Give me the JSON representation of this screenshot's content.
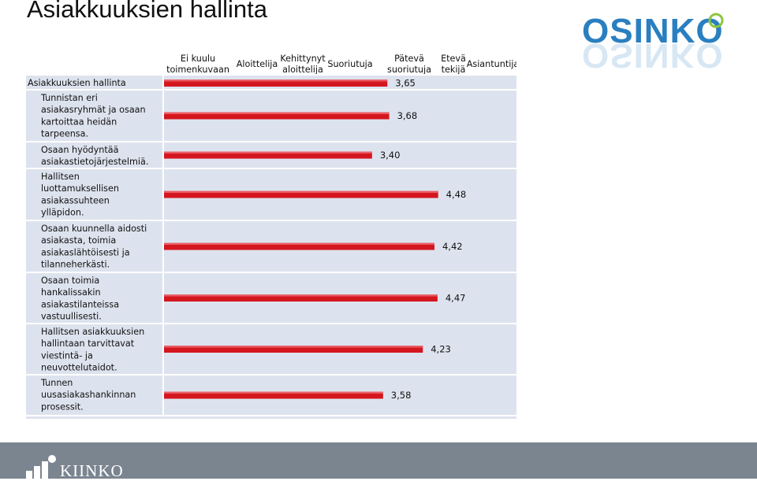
{
  "slide": {
    "title": "Asiakkuuksien hallinta"
  },
  "logo": {
    "text": "OSINKO",
    "color": "#2a7fc0",
    "accent": "#8dc63f"
  },
  "footer": {
    "brand": "KIINKO",
    "background": "#7b8590"
  },
  "chart_data": {
    "type": "bar",
    "orientation": "horizontal",
    "scale_labels": [
      [
        "Ei kuulu",
        "toimenkuvaan"
      ],
      [
        "Aloittelija"
      ],
      [
        "Kehittynyt",
        "aloittelija"
      ],
      [
        "Suoriutuja"
      ],
      [
        "Pätevä",
        "suoriutuja"
      ],
      [
        "Etevä",
        "tekijä"
      ],
      [
        "Asiantuntija"
      ]
    ],
    "xlim": [
      0,
      7
    ],
    "categories": [
      [
        "Asiakkuuksien hallinta"
      ],
      [
        "Tunnistan eri",
        "asiakasryhmät ja osaan",
        "kartoittaa heidän",
        "tarpeensa."
      ],
      [
        "Osaan hyödyntää",
        "asiakastietojärjestelmiä."
      ],
      [
        "Hallitsen",
        "luottamuksellisen",
        "asiakassuhteen",
        "ylläpidon."
      ],
      [
        "Osaan kuunnella aidosti",
        "asiakasta, toimia",
        "asiakaslähtöisesti ja",
        "tilanneherkästi."
      ],
      [
        "Osaan toimia",
        "hankalissakin",
        "asiakastilanteissa",
        "vastuullisesti."
      ],
      [
        "Hallitsen asiakkuuksien",
        "hallintaan tarvittavat",
        "viestintä- ja",
        "neuvottelutaidot."
      ],
      [
        "Tunnen",
        "uusasiakashankinnan",
        "prosessit."
      ]
    ],
    "values": [
      3.65,
      3.68,
      3.4,
      4.48,
      4.42,
      4.47,
      4.23,
      3.58
    ],
    "value_labels": [
      "3,65",
      "3,68",
      "3,40",
      "4,48",
      "4,42",
      "4,47",
      "4,23",
      "3,58"
    ],
    "bar_color": "#d4161f",
    "panel_color": "#dde3ee"
  }
}
